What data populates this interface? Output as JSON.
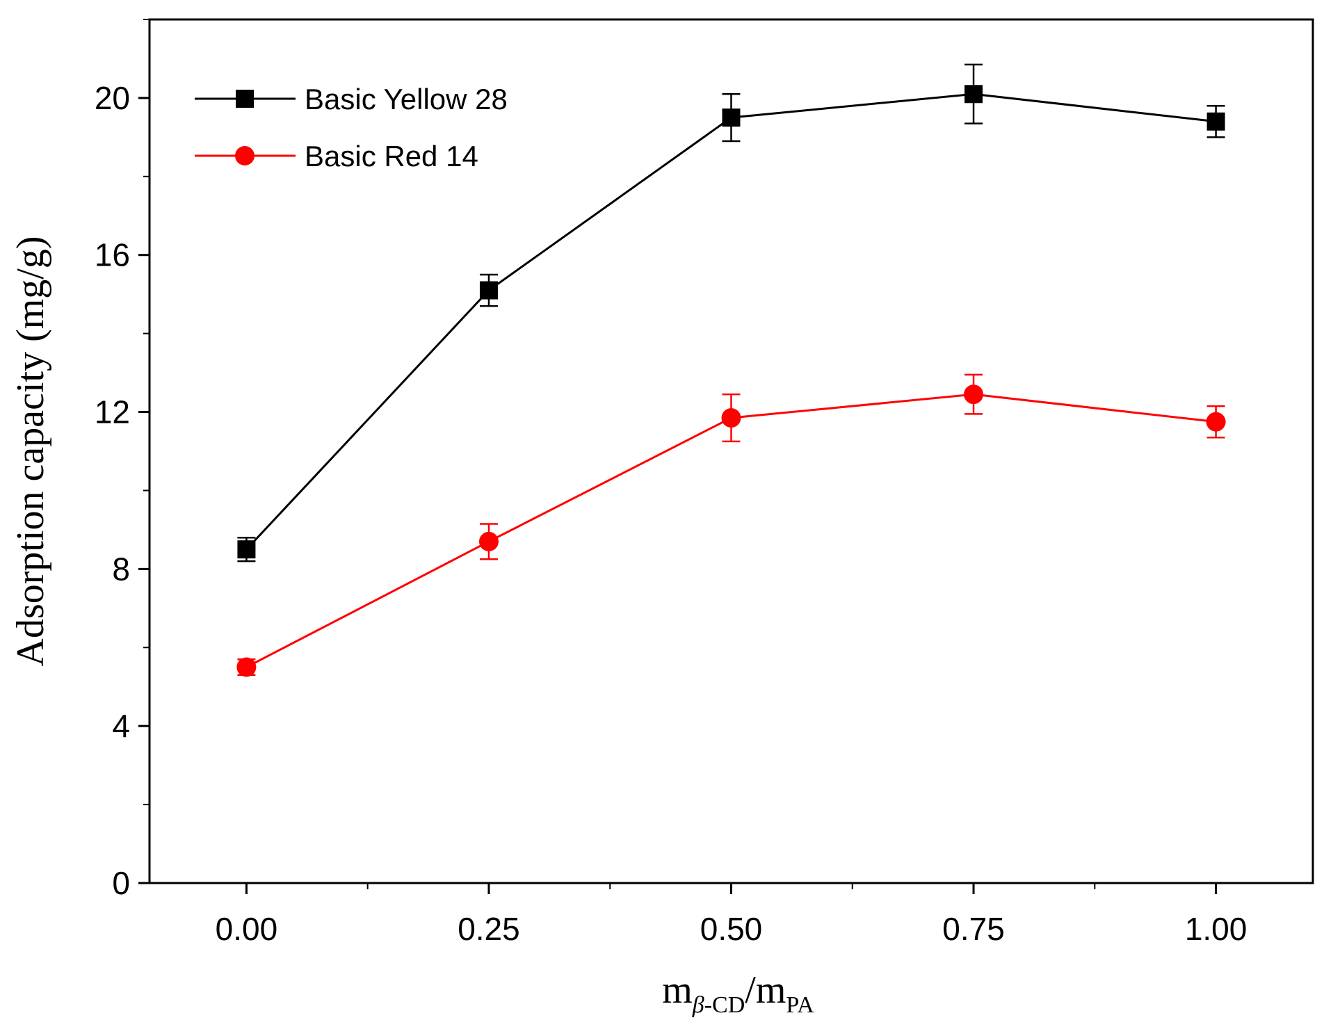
{
  "chart_data": {
    "type": "line",
    "title": "",
    "xlabel": {
      "main": "m",
      "sub1_italic": "β",
      "sub1_rest": "-CD",
      "slash": "/m",
      "sub2": "PA"
    },
    "ylabel": "Adsorption capacity (mg/g)",
    "x": [
      0.0,
      0.25,
      0.5,
      0.75,
      1.0
    ],
    "x_tick_labels": [
      "0.00",
      "0.25",
      "0.50",
      "0.75",
      "1.00"
    ],
    "y_ticks": [
      0,
      4,
      8,
      12,
      16,
      20
    ],
    "y_tick_labels": [
      "0",
      "4",
      "8",
      "12",
      "16",
      "20"
    ],
    "xlim": [
      -0.1,
      1.1
    ],
    "ylim": [
      0,
      22
    ],
    "legend_position": "top-left",
    "series": [
      {
        "name": "Basic Yellow 28",
        "color": "#000000",
        "marker": "square",
        "values": [
          8.5,
          15.1,
          19.5,
          20.1,
          19.4
        ],
        "errors": [
          0.3,
          0.4,
          0.6,
          0.75,
          0.4
        ]
      },
      {
        "name": "Basic Red 14",
        "color": "#ff0000",
        "marker": "circle",
        "values": [
          5.5,
          8.7,
          11.85,
          12.45,
          11.75
        ],
        "errors": [
          0.2,
          0.45,
          0.6,
          0.5,
          0.4
        ]
      }
    ]
  }
}
